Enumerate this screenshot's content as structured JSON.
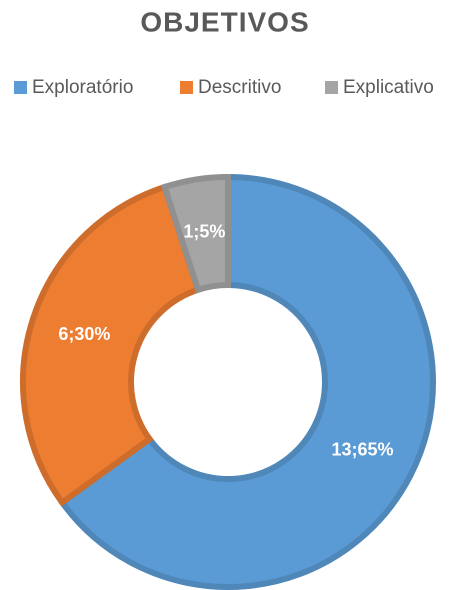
{
  "chart_data": {
    "type": "donut",
    "title": "OBJETIVOS",
    "categories": [
      "Exploratório",
      "Descritivo",
      "Explicativo"
    ],
    "values": [
      13,
      6,
      1
    ],
    "value_labels": [
      "13;65%",
      "6;30%",
      "1;5%"
    ],
    "colors": [
      "#5b9bd5",
      "#ed7d31",
      "#a5a5a5"
    ],
    "legend": "top"
  }
}
